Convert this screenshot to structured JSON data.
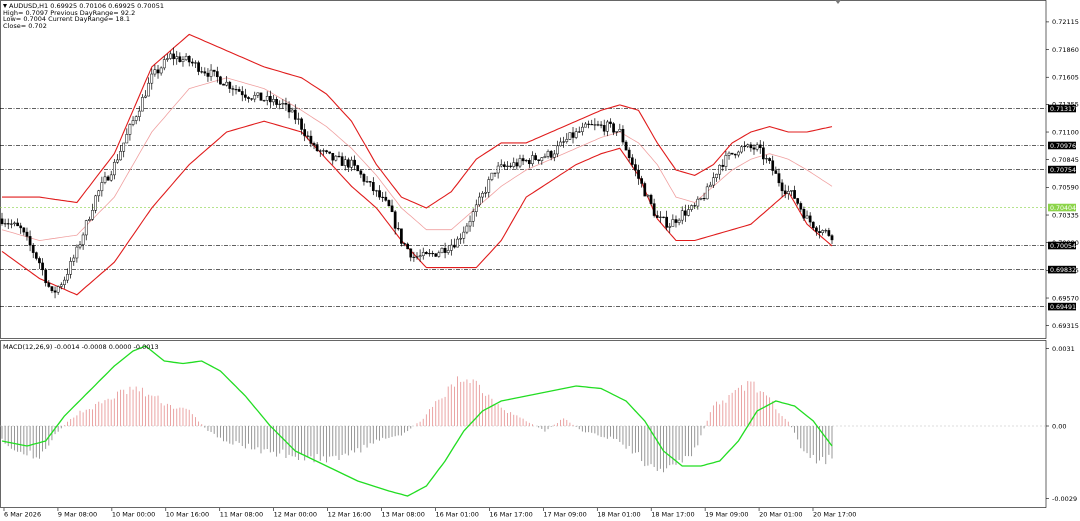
{
  "info": {
    "symbol_line": "AUDUSD,H1  0.69925 0.70106 0.69925 0.70051",
    "high_line": "High= 0.7097 Previous DayRange= 92.2",
    "low_line": "Low= 0.7004 Current DayRange= 18.1",
    "close_line": "Close= 0.702"
  },
  "macd_label": "MACD(12,26,9) -0.0014 -0.0008 0.0000 -0.0013",
  "colors": {
    "bollinger": "#e01c1c",
    "middle_band": "#f0a0a0",
    "candle": "#000000",
    "histogram_positive": "#e89a9a",
    "histogram_negative": "#8c8c8c",
    "signal": "#22dd22",
    "highlight_level": "#8cd44a"
  },
  "chart_data": [
    {
      "type": "candlestick",
      "symbol": "AUDUSD",
      "timeframe": "H1",
      "y_ticks": [
        "0.72115",
        "0.71860",
        "0.71605",
        "0.71355",
        "0.71100",
        "0.70845",
        "0.70590",
        "0.70335",
        "0.70080",
        "0.69825",
        "0.69570",
        "0.69315"
      ],
      "ylim": [
        0.6922,
        0.7228
      ],
      "levels": [
        {
          "value": 0.71317,
          "label": "0.71317"
        },
        {
          "value": 0.70976,
          "label": "0.70976"
        },
        {
          "value": 0.70754,
          "label": "0.70754"
        },
        {
          "value": 0.70404,
          "label": "0.70404",
          "highlight": true
        },
        {
          "value": 0.70054,
          "label": "0.70054"
        },
        {
          "value": 0.69832,
          "label": "0.69832"
        },
        {
          "value": 0.69491,
          "label": "0.69491"
        }
      ],
      "x_labels": [
        "6 Mar 2026",
        "9 Mar 08:00",
        "10 Mar 00:00",
        "10 Mar 16:00",
        "11 Mar 08:00",
        "12 Mar 00:00",
        "12 Mar 16:00",
        "13 Mar 08:00",
        "16 Mar 01:00",
        "16 Mar 17:00",
        "17 Mar 09:00",
        "18 Mar 01:00",
        "18 Mar 17:00",
        "19 Mar 09:00",
        "20 Mar 01:00",
        "20 Mar 17:00"
      ],
      "close_path": [
        [
          0,
          0.703
        ],
        [
          6,
          0.702
        ],
        [
          12,
          0.699
        ],
        [
          16,
          0.696
        ],
        [
          20,
          0.6975
        ],
        [
          24,
          0.7
        ],
        [
          30,
          0.705
        ],
        [
          36,
          0.708
        ],
        [
          42,
          0.712
        ],
        [
          48,
          0.716
        ],
        [
          54,
          0.718
        ],
        [
          60,
          0.7175
        ],
        [
          66,
          0.7165
        ],
        [
          72,
          0.7155
        ],
        [
          78,
          0.7145
        ],
        [
          84,
          0.714
        ],
        [
          90,
          0.7135
        ],
        [
          95,
          0.712
        ],
        [
          100,
          0.7095
        ],
        [
          106,
          0.7085
        ],
        [
          112,
          0.708
        ],
        [
          118,
          0.706
        ],
        [
          124,
          0.704
        ],
        [
          128,
          0.701
        ],
        [
          132,
          0.6995
        ],
        [
          136,
          0.6995
        ],
        [
          140,
          0.7
        ],
        [
          146,
          0.701
        ],
        [
          152,
          0.704
        ],
        [
          158,
          0.7075
        ],
        [
          164,
          0.708
        ],
        [
          170,
          0.7085
        ],
        [
          176,
          0.709
        ],
        [
          182,
          0.7105
        ],
        [
          188,
          0.7115
        ],
        [
          194,
          0.7115
        ],
        [
          198,
          0.711
        ],
        [
          202,
          0.708
        ],
        [
          206,
          0.7055
        ],
        [
          210,
          0.703
        ],
        [
          214,
          0.7025
        ],
        [
          218,
          0.7035
        ],
        [
          222,
          0.704
        ],
        [
          226,
          0.7055
        ],
        [
          230,
          0.708
        ],
        [
          236,
          0.7095
        ],
        [
          242,
          0.7095
        ],
        [
          246,
          0.708
        ],
        [
          250,
          0.706
        ],
        [
          254,
          0.705
        ],
        [
          258,
          0.703
        ],
        [
          262,
          0.702
        ],
        [
          266,
          0.7015
        ]
      ],
      "bollinger": {
        "upper": [
          [
            0,
            0.705
          ],
          [
            12,
            0.705
          ],
          [
            24,
            0.7045
          ],
          [
            36,
            0.709
          ],
          [
            48,
            0.717
          ],
          [
            60,
            0.72
          ],
          [
            72,
            0.7185
          ],
          [
            84,
            0.717
          ],
          [
            96,
            0.716
          ],
          [
            104,
            0.7145
          ],
          [
            112,
            0.712
          ],
          [
            120,
            0.708
          ],
          [
            128,
            0.705
          ],
          [
            136,
            0.704
          ],
          [
            144,
            0.7055
          ],
          [
            152,
            0.7085
          ],
          [
            160,
            0.71
          ],
          [
            168,
            0.71
          ],
          [
            176,
            0.711
          ],
          [
            184,
            0.712
          ],
          [
            192,
            0.713
          ],
          [
            198,
            0.7135
          ],
          [
            204,
            0.713
          ],
          [
            210,
            0.71
          ],
          [
            216,
            0.7075
          ],
          [
            222,
            0.707
          ],
          [
            228,
            0.708
          ],
          [
            234,
            0.71
          ],
          [
            240,
            0.711
          ],
          [
            246,
            0.7115
          ],
          [
            252,
            0.711
          ],
          [
            258,
            0.711
          ],
          [
            266,
            0.7115
          ]
        ],
        "middle": [
          [
            0,
            0.702
          ],
          [
            12,
            0.701
          ],
          [
            24,
            0.7015
          ],
          [
            36,
            0.705
          ],
          [
            48,
            0.711
          ],
          [
            60,
            0.715
          ],
          [
            72,
            0.716
          ],
          [
            84,
            0.715
          ],
          [
            96,
            0.713
          ],
          [
            104,
            0.7115
          ],
          [
            112,
            0.7095
          ],
          [
            120,
            0.707
          ],
          [
            128,
            0.704
          ],
          [
            136,
            0.702
          ],
          [
            144,
            0.702
          ],
          [
            152,
            0.704
          ],
          [
            160,
            0.706
          ],
          [
            168,
            0.7075
          ],
          [
            176,
            0.7085
          ],
          [
            184,
            0.7095
          ],
          [
            192,
            0.7105
          ],
          [
            198,
            0.711
          ],
          [
            204,
            0.71
          ],
          [
            210,
            0.708
          ],
          [
            216,
            0.705
          ],
          [
            222,
            0.7045
          ],
          [
            228,
            0.706
          ],
          [
            234,
            0.7075
          ],
          [
            240,
            0.7085
          ],
          [
            246,
            0.709
          ],
          [
            252,
            0.7085
          ],
          [
            258,
            0.7075
          ],
          [
            266,
            0.706
          ]
        ],
        "lower": [
          [
            0,
            0.7
          ],
          [
            12,
            0.6975
          ],
          [
            24,
            0.696
          ],
          [
            36,
            0.699
          ],
          [
            48,
            0.704
          ],
          [
            60,
            0.708
          ],
          [
            72,
            0.711
          ],
          [
            84,
            0.712
          ],
          [
            96,
            0.711
          ],
          [
            104,
            0.7085
          ],
          [
            112,
            0.706
          ],
          [
            120,
            0.704
          ],
          [
            128,
            0.701
          ],
          [
            136,
            0.6985
          ],
          [
            144,
            0.6985
          ],
          [
            152,
            0.6985
          ],
          [
            160,
            0.701
          ],
          [
            168,
            0.705
          ],
          [
            176,
            0.7065
          ],
          [
            184,
            0.708
          ],
          [
            192,
            0.709
          ],
          [
            198,
            0.7095
          ],
          [
            204,
            0.707
          ],
          [
            210,
            0.703
          ],
          [
            216,
            0.701
          ],
          [
            222,
            0.701
          ],
          [
            228,
            0.7015
          ],
          [
            234,
            0.702
          ],
          [
            240,
            0.7025
          ],
          [
            246,
            0.704
          ],
          [
            252,
            0.7055
          ],
          [
            258,
            0.7025
          ],
          [
            266,
            0.7005
          ]
        ]
      }
    },
    {
      "type": "macd",
      "y_ticks": [
        "0.0031",
        "0.00",
        "-0.0029"
      ],
      "ylim": [
        -0.0032,
        0.0034
      ],
      "histogram_keyframes": [
        [
          0,
          -0.0006
        ],
        [
          6,
          -0.001
        ],
        [
          12,
          -0.0012
        ],
        [
          18,
          -0.0002
        ],
        [
          24,
          0.0005
        ],
        [
          30,
          0.0008
        ],
        [
          36,
          0.0012
        ],
        [
          42,
          0.0015
        ],
        [
          48,
          0.0012
        ],
        [
          54,
          0.0008
        ],
        [
          60,
          0.0006
        ],
        [
          66,
          -0.0002
        ],
        [
          72,
          -0.0006
        ],
        [
          78,
          -0.0008
        ],
        [
          84,
          -0.001
        ],
        [
          90,
          -0.0011
        ],
        [
          96,
          -0.0012
        ],
        [
          102,
          -0.0013
        ],
        [
          108,
          -0.0012
        ],
        [
          114,
          -0.001
        ],
        [
          120,
          -0.0006
        ],
        [
          128,
          -0.0004
        ],
        [
          134,
          0.0002
        ],
        [
          140,
          0.001
        ],
        [
          146,
          0.0018
        ],
        [
          150,
          0.002
        ],
        [
          156,
          0.0012
        ],
        [
          162,
          0.0006
        ],
        [
          168,
          0.0002
        ],
        [
          174,
          -0.0002
        ],
        [
          180,
          0.0003
        ],
        [
          186,
          -0.0002
        ],
        [
          192,
          -0.0004
        ],
        [
          198,
          -0.0006
        ],
        [
          204,
          -0.0012
        ],
        [
          210,
          -0.0018
        ],
        [
          216,
          -0.0016
        ],
        [
          222,
          -0.001
        ],
        [
          228,
          0.0008
        ],
        [
          234,
          0.0012
        ],
        [
          240,
          0.0018
        ],
        [
          246,
          0.001
        ],
        [
          252,
          0.0002
        ],
        [
          256,
          -0.0008
        ],
        [
          262,
          -0.0015
        ],
        [
          266,
          -0.0012
        ]
      ],
      "signal_line": [
        [
          0,
          -0.0006
        ],
        [
          8,
          -0.0008
        ],
        [
          14,
          -0.0006
        ],
        [
          20,
          0.0004
        ],
        [
          28,
          0.0014
        ],
        [
          36,
          0.0024
        ],
        [
          42,
          0.003
        ],
        [
          46,
          0.0032
        ],
        [
          52,
          0.0026
        ],
        [
          58,
          0.0025
        ],
        [
          64,
          0.0026
        ],
        [
          70,
          0.0022
        ],
        [
          78,
          0.0012
        ],
        [
          86,
          0.0
        ],
        [
          94,
          -0.001
        ],
        [
          104,
          -0.0016
        ],
        [
          114,
          -0.0022
        ],
        [
          124,
          -0.0026
        ],
        [
          130,
          -0.0028
        ],
        [
          136,
          -0.0024
        ],
        [
          142,
          -0.0014
        ],
        [
          148,
          -0.0002
        ],
        [
          154,
          0.0006
        ],
        [
          160,
          0.001
        ],
        [
          168,
          0.0012
        ],
        [
          176,
          0.0014
        ],
        [
          184,
          0.0016
        ],
        [
          192,
          0.0015
        ],
        [
          200,
          0.001
        ],
        [
          206,
          0.0002
        ],
        [
          212,
          -0.001
        ],
        [
          218,
          -0.0016
        ],
        [
          224,
          -0.0016
        ],
        [
          230,
          -0.0014
        ],
        [
          236,
          -0.0006
        ],
        [
          242,
          0.0006
        ],
        [
          248,
          0.001
        ],
        [
          254,
          0.0008
        ],
        [
          260,
          0.0002
        ],
        [
          266,
          -0.0008
        ]
      ]
    }
  ]
}
